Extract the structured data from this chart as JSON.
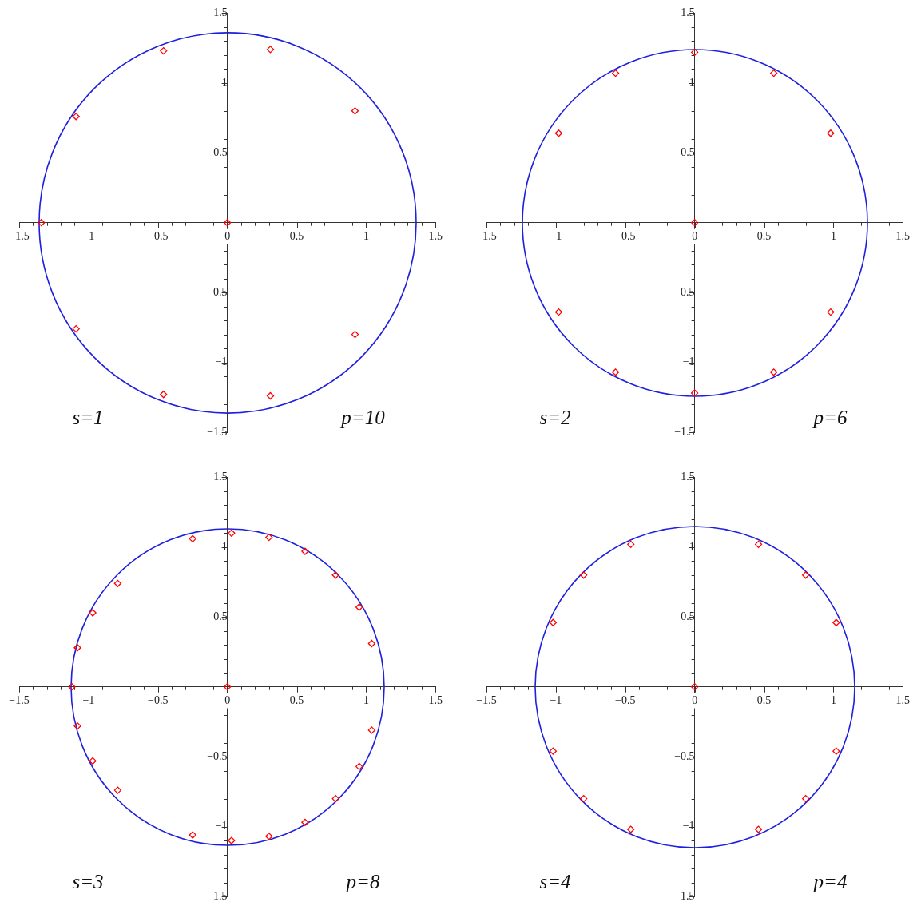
{
  "chart_data": [
    {
      "type": "scatter",
      "annotations": [
        "s=1",
        "p=10"
      ],
      "xlim": [
        -1.5,
        1.5
      ],
      "ylim": [
        -1.5,
        1.5
      ],
      "xticks": [
        {
          "value": -1.5,
          "label": "−1.5"
        },
        {
          "value": -1.4,
          "label": null
        },
        {
          "value": -1.3,
          "label": null
        },
        {
          "value": -1.2,
          "label": null
        },
        {
          "value": -1.1,
          "label": null
        },
        {
          "value": -1,
          "label": "−1"
        },
        {
          "value": -0.9,
          "label": null
        },
        {
          "value": -0.8,
          "label": null
        },
        {
          "value": -0.7,
          "label": null
        },
        {
          "value": -0.6,
          "label": null
        },
        {
          "value": -0.5,
          "label": "−0.5"
        },
        {
          "value": -0.4,
          "label": null
        },
        {
          "value": -0.3,
          "label": null
        },
        {
          "value": -0.2,
          "label": null
        },
        {
          "value": -0.1,
          "label": null
        },
        0,
        {
          "value": 0.1,
          "label": null
        },
        {
          "value": 0.2,
          "label": null
        },
        {
          "value": 0.3,
          "label": null
        },
        {
          "value": 0.4,
          "label": null
        },
        0.5,
        {
          "value": 0.6,
          "label": null
        },
        {
          "value": 0.7,
          "label": null
        },
        {
          "value": 0.8,
          "label": null
        },
        {
          "value": 0.9,
          "label": null
        },
        1,
        {
          "value": 1.1,
          "label": null
        },
        {
          "value": 1.2,
          "label": null
        },
        {
          "value": 1.3,
          "label": null
        },
        {
          "value": 1.4,
          "label": null
        },
        1.5
      ],
      "yticks": [
        {
          "value": -1.5,
          "label": "−1.5"
        },
        {
          "value": -1.4,
          "label": null
        },
        {
          "value": -1.3,
          "label": null
        },
        {
          "value": -1.2,
          "label": null
        },
        {
          "value": -1.1,
          "label": null
        },
        {
          "value": -1,
          "label": "−1"
        },
        {
          "value": -0.9,
          "label": null
        },
        {
          "value": -0.8,
          "label": null
        },
        {
          "value": -0.7,
          "label": null
        },
        {
          "value": -0.6,
          "label": null
        },
        {
          "value": -0.5,
          "label": "−0.5"
        },
        {
          "value": -0.4,
          "label": null
        },
        {
          "value": -0.3,
          "label": null
        },
        {
          "value": -0.2,
          "label": null
        },
        {
          "value": -0.1,
          "label": null
        },
        {
          "value": 0.1,
          "label": null
        },
        {
          "value": 0.2,
          "label": null
        },
        {
          "value": 0.3,
          "label": null
        },
        {
          "value": 0.4,
          "label": null
        },
        0.5,
        {
          "value": 0.6,
          "label": null
        },
        {
          "value": 0.7,
          "label": null
        },
        {
          "value": 0.8,
          "label": null
        },
        {
          "value": 0.9,
          "label": null
        },
        1,
        {
          "value": 1.1,
          "label": null
        },
        {
          "value": 1.2,
          "label": null
        },
        {
          "value": 1.3,
          "label": null
        },
        {
          "value": 1.4,
          "label": null
        },
        1.5
      ],
      "series": [
        {
          "type": "scatter",
          "color": "#ff0000",
          "marker": "diamond",
          "x": [
            -0.46,
            0.31,
            0.92,
            -1.09,
            -1.34,
            0,
            -1.09,
            0.92,
            -0.46,
            0.31
          ],
          "values": [
            1.23,
            1.24,
            0.8,
            0.76,
            0,
            0,
            -0.76,
            -0.8,
            -1.23,
            -1.24
          ]
        }
      ]
    },
    {
      "type": "scatter",
      "annotations": [
        "s=2",
        "p=6"
      ],
      "xlim": [
        -1.5,
        1.5
      ],
      "ylim": [
        -1.5,
        1.5
      ],
      "xticks": [
        {
          "value": -1.5,
          "label": "−1.5"
        },
        {
          "value": -1.4,
          "label": null
        },
        {
          "value": -1.3,
          "label": null
        },
        {
          "value": -1.2,
          "label": null
        },
        {
          "value": -1.1,
          "label": null
        },
        {
          "value": -1,
          "label": "−1"
        },
        {
          "value": -0.9,
          "label": null
        },
        {
          "value": -0.8,
          "label": null
        },
        {
          "value": -0.7,
          "label": null
        },
        {
          "value": -0.6,
          "label": null
        },
        {
          "value": -0.5,
          "label": "−0.5"
        },
        {
          "value": -0.4,
          "label": null
        },
        {
          "value": -0.3,
          "label": null
        },
        {
          "value": -0.2,
          "label": null
        },
        {
          "value": -0.1,
          "label": null
        },
        0,
        {
          "value": 0.1,
          "label": null
        },
        {
          "value": 0.2,
          "label": null
        },
        {
          "value": 0.3,
          "label": null
        },
        {
          "value": 0.4,
          "label": null
        },
        0.5,
        {
          "value": 0.6,
          "label": null
        },
        {
          "value": 0.7,
          "label": null
        },
        {
          "value": 0.8,
          "label": null
        },
        {
          "value": 0.9,
          "label": null
        },
        1,
        {
          "value": 1.1,
          "label": null
        },
        {
          "value": 1.2,
          "label": null
        },
        {
          "value": 1.3,
          "label": null
        },
        {
          "value": 1.4,
          "label": null
        },
        1.5
      ],
      "yticks": [
        {
          "value": -1.5,
          "label": "−1.5"
        },
        {
          "value": -1.4,
          "label": null
        },
        {
          "value": -1.3,
          "label": null
        },
        {
          "value": -1.2,
          "label": null
        },
        {
          "value": -1.1,
          "label": null
        },
        {
          "value": -1,
          "label": "−1"
        },
        {
          "value": -0.9,
          "label": null
        },
        {
          "value": -0.8,
          "label": null
        },
        {
          "value": -0.7,
          "label": null
        },
        {
          "value": -0.6,
          "label": null
        },
        {
          "value": -0.5,
          "label": "−0.5"
        },
        {
          "value": -0.4,
          "label": null
        },
        {
          "value": -0.3,
          "label": null
        },
        {
          "value": -0.2,
          "label": null
        },
        {
          "value": -0.1,
          "label": null
        },
        {
          "value": 0.1,
          "label": null
        },
        {
          "value": 0.2,
          "label": null
        },
        {
          "value": 0.3,
          "label": null
        },
        {
          "value": 0.4,
          "label": null
        },
        0.5,
        {
          "value": 0.6,
          "label": null
        },
        {
          "value": 0.7,
          "label": null
        },
        {
          "value": 0.8,
          "label": null
        },
        {
          "value": 0.9,
          "label": null
        },
        1,
        {
          "value": 1.1,
          "label": null
        },
        {
          "value": 1.2,
          "label": null
        },
        {
          "value": 1.3,
          "label": null
        },
        {
          "value": 1.4,
          "label": null
        },
        1.5
      ],
      "series": [
        {
          "type": "scatter",
          "color": "#ff0000",
          "marker": "diamond",
          "x": [
            0,
            -0.57,
            0.57,
            -0.98,
            0.98,
            0,
            -0.98,
            0.98,
            -0.57,
            0.57,
            0
          ],
          "values": [
            1.22,
            1.07,
            1.07,
            0.64,
            0.64,
            0,
            -0.64,
            -0.64,
            -1.07,
            -1.07,
            -1.22
          ]
        }
      ]
    },
    {
      "type": "scatter",
      "annotations": [
        "s=3",
        "p=8"
      ],
      "xlim": [
        -1.5,
        1.5
      ],
      "ylim": [
        -1.5,
        1.5
      ],
      "xticks": [
        {
          "value": -1.5,
          "label": "−1.5"
        },
        {
          "value": -1.4,
          "label": null
        },
        {
          "value": -1.3,
          "label": null
        },
        {
          "value": -1.2,
          "label": null
        },
        {
          "value": -1.1,
          "label": null
        },
        {
          "value": -1,
          "label": "−1"
        },
        {
          "value": -0.9,
          "label": null
        },
        {
          "value": -0.8,
          "label": null
        },
        {
          "value": -0.7,
          "label": null
        },
        {
          "value": -0.6,
          "label": null
        },
        {
          "value": -0.5,
          "label": "−0.5"
        },
        {
          "value": -0.4,
          "label": null
        },
        {
          "value": -0.3,
          "label": null
        },
        {
          "value": -0.2,
          "label": null
        },
        {
          "value": -0.1,
          "label": null
        },
        0,
        {
          "value": 0.1,
          "label": null
        },
        {
          "value": 0.2,
          "label": null
        },
        {
          "value": 0.3,
          "label": null
        },
        {
          "value": 0.4,
          "label": null
        },
        0.5,
        {
          "value": 0.6,
          "label": null
        },
        {
          "value": 0.7,
          "label": null
        },
        {
          "value": 0.8,
          "label": null
        },
        {
          "value": 0.9,
          "label": null
        },
        1,
        {
          "value": 1.1,
          "label": null
        },
        {
          "value": 1.2,
          "label": null
        },
        {
          "value": 1.3,
          "label": null
        },
        {
          "value": 1.4,
          "label": null
        },
        1.5
      ],
      "yticks": [
        {
          "value": -1.5,
          "label": "−1.5"
        },
        {
          "value": -1.4,
          "label": null
        },
        {
          "value": -1.3,
          "label": null
        },
        {
          "value": -1.2,
          "label": null
        },
        {
          "value": -1.1,
          "label": null
        },
        {
          "value": -1,
          "label": "−1"
        },
        {
          "value": -0.9,
          "label": null
        },
        {
          "value": -0.8,
          "label": null
        },
        {
          "value": -0.7,
          "label": null
        },
        {
          "value": -0.6,
          "label": null
        },
        {
          "value": -0.5,
          "label": "−0.5"
        },
        {
          "value": -0.4,
          "label": null
        },
        {
          "value": -0.3,
          "label": null
        },
        {
          "value": -0.2,
          "label": null
        },
        {
          "value": -0.1,
          "label": null
        },
        {
          "value": 0.1,
          "label": null
        },
        {
          "value": 0.2,
          "label": null
        },
        {
          "value": 0.3,
          "label": null
        },
        {
          "value": 0.4,
          "label": null
        },
        0.5,
        {
          "value": 0.6,
          "label": null
        },
        {
          "value": 0.7,
          "label": null
        },
        {
          "value": 0.8,
          "label": null
        },
        {
          "value": 0.9,
          "label": null
        },
        1,
        {
          "value": 1.1,
          "label": null
        },
        {
          "value": 1.2,
          "label": null
        },
        {
          "value": 1.3,
          "label": null
        },
        {
          "value": 1.4,
          "label": null
        },
        1.5
      ],
      "series": [
        {
          "type": "scatter",
          "color": "#ff0000",
          "marker": "diamond",
          "x": [
            0.03,
            0.3,
            0.56,
            0.78,
            0.95,
            1.04,
            1.04,
            0.95,
            0.78,
            0.56,
            0.3,
            0.03,
            -0.25,
            -0.25,
            -0.79,
            -0.79,
            -0.97,
            -0.97,
            -1.08,
            -1.08,
            -1.12,
            0
          ],
          "values": [
            1.1,
            1.07,
            0.97,
            0.8,
            0.57,
            0.31,
            -0.31,
            -0.57,
            -0.8,
            -0.97,
            -1.07,
            -1.1,
            1.06,
            -1.06,
            0.74,
            -0.74,
            0.53,
            -0.53,
            0.28,
            -0.28,
            0,
            0
          ]
        }
      ]
    },
    {
      "type": "scatter",
      "annotations": [
        "s=4",
        "p=4"
      ],
      "xlim": [
        -1.5,
        1.5
      ],
      "ylim": [
        -1.5,
        1.5
      ],
      "xticks": [
        {
          "value": -1.5,
          "label": "−1.5"
        },
        {
          "value": -1.4,
          "label": null
        },
        {
          "value": -1.3,
          "label": null
        },
        {
          "value": -1.2,
          "label": null
        },
        {
          "value": -1.1,
          "label": null
        },
        {
          "value": -1,
          "label": "−1"
        },
        {
          "value": -0.9,
          "label": null
        },
        {
          "value": -0.8,
          "label": null
        },
        {
          "value": -0.7,
          "label": null
        },
        {
          "value": -0.6,
          "label": null
        },
        {
          "value": -0.5,
          "label": "−0.5"
        },
        {
          "value": -0.4,
          "label": null
        },
        {
          "value": -0.3,
          "label": null
        },
        {
          "value": -0.2,
          "label": null
        },
        {
          "value": -0.1,
          "label": null
        },
        0,
        {
          "value": 0.1,
          "label": null
        },
        {
          "value": 0.2,
          "label": null
        },
        {
          "value": 0.3,
          "label": null
        },
        {
          "value": 0.4,
          "label": null
        },
        0.5,
        {
          "value": 0.6,
          "label": null
        },
        {
          "value": 0.7,
          "label": null
        },
        {
          "value": 0.8,
          "label": null
        },
        {
          "value": 0.9,
          "label": null
        },
        1,
        {
          "value": 1.1,
          "label": null
        },
        {
          "value": 1.2,
          "label": null
        },
        {
          "value": 1.3,
          "label": null
        },
        {
          "value": 1.4,
          "label": null
        },
        1.5
      ],
      "yticks": [
        {
          "value": -1.5,
          "label": "−1.5"
        },
        {
          "value": -1.4,
          "label": null
        },
        {
          "value": -1.3,
          "label": null
        },
        {
          "value": -1.2,
          "label": null
        },
        {
          "value": -1.1,
          "label": null
        },
        {
          "value": -1,
          "label": "−1"
        },
        {
          "value": -0.9,
          "label": null
        },
        {
          "value": -0.8,
          "label": null
        },
        {
          "value": -0.7,
          "label": null
        },
        {
          "value": -0.6,
          "label": null
        },
        {
          "value": -0.5,
          "label": "−0.5"
        },
        {
          "value": -0.4,
          "label": null
        },
        {
          "value": -0.3,
          "label": null
        },
        {
          "value": -0.2,
          "label": null
        },
        {
          "value": -0.1,
          "label": null
        },
        {
          "value": 0.1,
          "label": null
        },
        {
          "value": 0.2,
          "label": null
        },
        {
          "value": 0.3,
          "label": null
        },
        {
          "value": 0.4,
          "label": null
        },
        0.5,
        {
          "value": 0.6,
          "label": null
        },
        {
          "value": 0.7,
          "label": null
        },
        {
          "value": 0.8,
          "label": null
        },
        {
          "value": 0.9,
          "label": null
        },
        1,
        {
          "value": 1.1,
          "label": null
        },
        {
          "value": 1.2,
          "label": null
        },
        {
          "value": 1.3,
          "label": null
        },
        {
          "value": 1.4,
          "label": null
        },
        1.5
      ],
      "series": [
        {
          "type": "scatter",
          "color": "#ff0000",
          "marker": "diamond",
          "x": [
            -0.46,
            0.46,
            -0.8,
            0.8,
            -1.02,
            1.02,
            -1.02,
            1.02,
            -0.8,
            0.8,
            -0.46,
            0.46,
            0
          ],
          "values": [
            1.02,
            1.02,
            0.8,
            0.8,
            0.46,
            0.46,
            -0.46,
            -0.46,
            -0.8,
            -0.8,
            -1.02,
            -1.02,
            0
          ]
        }
      ]
    }
  ]
}
